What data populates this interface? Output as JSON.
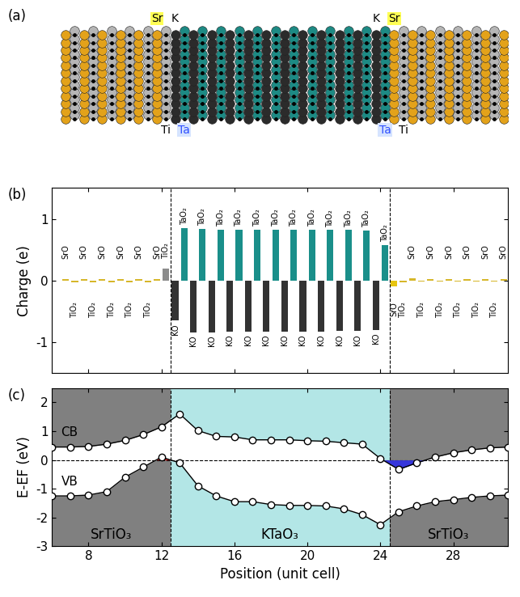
{
  "structure": {
    "label": "(a)",
    "atom_colors": [
      "#e3a21a",
      "#b5b5b5",
      "#e3a21a",
      "#b5b5b5",
      "#e3a21a",
      "#b5b5b5",
      "#e3a21a",
      "#b5b5b5",
      "#e3a21a",
      "#b5b5b5",
      "#e3a21a",
      "#b5b5b5",
      "#2b2b2b",
      "#1d8a84",
      "#2b2b2b",
      "#1d8a84",
      "#2b2b2b",
      "#1d8a84",
      "#2b2b2b",
      "#1d8a84",
      "#2b2b2b",
      "#1d8a84",
      "#2b2b2b",
      "#1d8a84",
      "#2b2b2b",
      "#1d8a84",
      "#2b2b2b",
      "#1d8a84",
      "#2b2b2b",
      "#1d8a84",
      "#2b2b2b",
      "#1d8a84",
      "#2b2b2b",
      "#1d8a84",
      "#2b2b2b",
      "#1d8a84",
      "#e3a21a",
      "#b5b5b5",
      "#e3a21a",
      "#b5b5b5",
      "#e3a21a",
      "#b5b5b5",
      "#e3a21a",
      "#b5b5b5",
      "#e3a21a",
      "#b5b5b5",
      "#e3a21a",
      "#b5b5b5",
      "#e3a21a"
    ],
    "top_labels": [
      {
        "text": "Sr",
        "x": 11.75,
        "color": "#000000",
        "highlight": "#ffff55"
      },
      {
        "text": "K",
        "x": 12.75,
        "color": "#000000"
      },
      {
        "text": "K",
        "x": 23.75,
        "color": "#000000"
      },
      {
        "text": "Sr",
        "x": 24.75,
        "color": "#000000",
        "highlight": "#ffff55"
      }
    ],
    "bottom_labels": [
      {
        "text": "Ti",
        "x": 12.25,
        "color": "#000000"
      },
      {
        "text": "Ta",
        "x": 13.25,
        "color": "#2f4fff",
        "highlight": "#d6e4ff"
      },
      {
        "text": "Ta",
        "x": 24.25,
        "color": "#2f4fff",
        "highlight": "#d6e4ff"
      },
      {
        "text": "Ti",
        "x": 25.25,
        "color": "#000000"
      }
    ]
  },
  "chart_data": [
    {
      "type": "bar",
      "label": "(b)",
      "ylabel": "Charge (e)",
      "x": [
        6.75,
        7.25,
        7.75,
        8.25,
        8.75,
        9.25,
        9.75,
        10.25,
        10.75,
        11.25,
        11.75,
        12.25,
        12.75,
        13.25,
        13.75,
        14.25,
        14.75,
        15.25,
        15.75,
        16.25,
        16.75,
        17.25,
        17.75,
        18.25,
        18.75,
        19.25,
        19.75,
        20.25,
        20.75,
        21.25,
        21.75,
        22.25,
        22.75,
        23.25,
        23.75,
        24.25,
        24.75,
        25.25,
        25.75,
        26.25,
        26.75,
        27.25,
        27.75,
        28.25,
        28.75,
        29.25,
        29.75,
        30.25,
        30.75
      ],
      "layers": [
        "SrO",
        "TiO₂",
        "SrO",
        "TiO₂",
        "SrO",
        "TiO₂",
        "SrO",
        "TiO₂",
        "SrO",
        "TiO₂",
        "SrO",
        "TiO₂",
        "KO",
        "TaO₂",
        "KO",
        "TaO₂",
        "KO",
        "TaO₂",
        "KO",
        "TaO₂",
        "KO",
        "TaO₂",
        "KO",
        "TaO₂",
        "KO",
        "TaO₂",
        "KO",
        "TaO₂",
        "KO",
        "TaO₂",
        "KO",
        "TaO₂",
        "KO",
        "TaO₂",
        "KO",
        "TaO₂",
        "SrO",
        "TiO₂",
        "SrO",
        "TiO₂",
        "SrO",
        "TiO₂",
        "SrO",
        "TiO₂",
        "SrO",
        "TiO₂",
        "SrO",
        "TiO₂",
        "SrO"
      ],
      "values": [
        0.03,
        -0.03,
        0.03,
        -0.03,
        0.03,
        -0.03,
        0.03,
        -0.03,
        0.03,
        -0.03,
        0.03,
        0.2,
        -0.65,
        0.85,
        -0.84,
        0.84,
        -0.84,
        0.83,
        -0.83,
        0.83,
        -0.83,
        0.83,
        -0.83,
        0.83,
        -0.83,
        0.83,
        -0.83,
        0.83,
        -0.83,
        0.82,
        -0.82,
        0.82,
        -0.82,
        0.81,
        -0.8,
        0.58,
        -0.1,
        -0.03,
        0.04,
        -0.02,
        0.03,
        -0.02,
        0.03,
        -0.02,
        0.03,
        -0.02,
        0.03,
        -0.02,
        0.03
      ],
      "colors": [
        "#d6b72a",
        "#d6b72a",
        "#d6b72a",
        "#d6b72a",
        "#d6b72a",
        "#d6b72a",
        "#d6b72a",
        "#d6b72a",
        "#d6b72a",
        "#d6b72a",
        "#d6b72a",
        "#8c8c8c",
        "#333333",
        "#1a8f8a",
        "#333333",
        "#1a8f8a",
        "#333333",
        "#1a8f8a",
        "#333333",
        "#1a8f8a",
        "#333333",
        "#1a8f8a",
        "#333333",
        "#1a8f8a",
        "#333333",
        "#1a8f8a",
        "#333333",
        "#1a8f8a",
        "#333333",
        "#1a8f8a",
        "#333333",
        "#1a8f8a",
        "#333333",
        "#1a8f8a",
        "#333333",
        "#1a8f8a",
        "#e6c40f",
        "#d6b72a",
        "#d6b72a",
        "#d6b72a",
        "#d6b72a",
        "#d6b72a",
        "#d6b72a",
        "#d6b72a",
        "#d6b72a",
        "#d6b72a",
        "#d6b72a",
        "#d6b72a",
        "#d6b72a"
      ],
      "interfaces": [
        12.5,
        24.5
      ],
      "xlim": [
        6,
        31
      ],
      "xticks": [
        8,
        12,
        16,
        20,
        24,
        28
      ],
      "ylim": [
        -1.5,
        1.5
      ],
      "yticks": [
        -1,
        0,
        1
      ],
      "tick_labels": "y"
    },
    {
      "type": "line",
      "label": "(c)",
      "xlabel": "Position (unit cell)",
      "ylabel": "E-EF (eV)",
      "x": [
        6,
        7,
        8,
        9,
        10,
        11,
        12,
        13,
        14,
        15,
        16,
        17,
        18,
        19,
        20,
        21,
        22,
        23,
        24,
        25,
        26,
        27,
        28,
        29,
        30,
        31
      ],
      "series": [
        {
          "name": "CB",
          "marker": "o",
          "line_style": "solid",
          "fill_color": "#3535dc",
          "values": [
            0.45,
            0.45,
            0.47,
            0.55,
            0.68,
            0.88,
            1.15,
            1.6,
            1.02,
            0.82,
            0.8,
            0.7,
            0.7,
            0.7,
            0.67,
            0.65,
            0.6,
            0.55,
            0.05,
            -0.33,
            -0.1,
            0.1,
            0.25,
            0.35,
            0.42,
            0.45
          ]
        },
        {
          "name": "VB",
          "marker": "o",
          "line_style": "solid",
          "fill_color": "#e02020",
          "values": [
            -1.25,
            -1.25,
            -1.22,
            -1.1,
            -0.6,
            -0.25,
            0.1,
            -0.1,
            -0.9,
            -1.25,
            -1.45,
            -1.45,
            -1.55,
            -1.58,
            -1.58,
            -1.6,
            -1.7,
            -1.9,
            -2.25,
            -1.8,
            -1.6,
            -1.45,
            -1.38,
            -1.3,
            -1.25,
            -1.22
          ]
        }
      ],
      "fermi_level": 0,
      "regions": [
        {
          "name": "SrTiO₃",
          "range": [
            6,
            12.5
          ],
          "color": "#808080"
        },
        {
          "name": "KTaO₃",
          "range": [
            12.5,
            24.5
          ],
          "color": "#b3e6e6"
        },
        {
          "name": "SrTiO₃",
          "range": [
            24.5,
            31
          ],
          "color": "#808080"
        }
      ],
      "xlim": [
        6,
        31
      ],
      "xticks": [
        8,
        12,
        16,
        20,
        24,
        28
      ],
      "ylim": [
        -3,
        2.5
      ],
      "yticks": [
        -3,
        -2,
        -1,
        0,
        1,
        2
      ]
    }
  ]
}
